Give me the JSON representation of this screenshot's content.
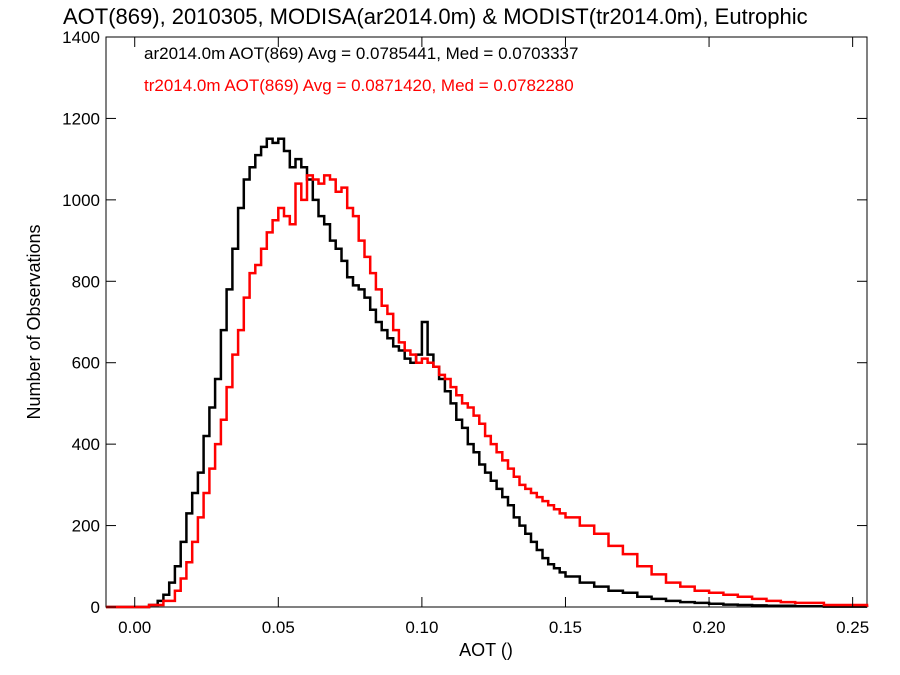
{
  "chart_data": {
    "type": "line",
    "title": "AOT(869), 2010305, MODISA(ar2014.0m) & MODIST(tr2014.0m), Eutrophic",
    "xlabel": "AOT ()",
    "ylabel": "Number of Observations",
    "xlim": [
      -0.01,
      0.255
    ],
    "ylim": [
      0,
      1400
    ],
    "xticks": [
      {
        "value": 0.0,
        "label": "0.00"
      },
      {
        "value": 0.05,
        "label": "0.05"
      },
      {
        "value": 0.1,
        "label": "0.10"
      },
      {
        "value": 0.15,
        "label": "0.15"
      },
      {
        "value": 0.2,
        "label": "0.20"
      },
      {
        "value": 0.25,
        "label": "0.25"
      }
    ],
    "yticks": [
      {
        "value": 0,
        "label": "0"
      },
      {
        "value": 200,
        "label": "200"
      },
      {
        "value": 400,
        "label": "400"
      },
      {
        "value": 600,
        "label": "600"
      },
      {
        "value": 800,
        "label": "800"
      },
      {
        "value": 1000,
        "label": "1000"
      },
      {
        "value": 1200,
        "label": "1200"
      },
      {
        "value": 1400,
        "label": "1400"
      }
    ],
    "grid": false,
    "legend_position": "top-left",
    "series": [
      {
        "name": "ar2014.0m",
        "color": "#000000",
        "legend_text": "ar2014.0m AOT(869) Avg = 0.0785441, Med = 0.0703337",
        "x": [
          -0.01,
          0.0,
          0.005,
          0.008,
          0.01,
          0.012,
          0.014,
          0.016,
          0.018,
          0.02,
          0.022,
          0.024,
          0.026,
          0.028,
          0.03,
          0.032,
          0.034,
          0.036,
          0.038,
          0.04,
          0.042,
          0.044,
          0.046,
          0.048,
          0.05,
          0.052,
          0.054,
          0.056,
          0.058,
          0.06,
          0.062,
          0.064,
          0.066,
          0.068,
          0.07,
          0.072,
          0.074,
          0.076,
          0.078,
          0.08,
          0.082,
          0.084,
          0.086,
          0.088,
          0.09,
          0.092,
          0.094,
          0.096,
          0.098,
          0.1,
          0.102,
          0.104,
          0.106,
          0.108,
          0.11,
          0.112,
          0.114,
          0.116,
          0.118,
          0.12,
          0.122,
          0.124,
          0.126,
          0.128,
          0.13,
          0.132,
          0.134,
          0.136,
          0.138,
          0.14,
          0.142,
          0.144,
          0.146,
          0.148,
          0.15,
          0.155,
          0.16,
          0.165,
          0.17,
          0.175,
          0.18,
          0.185,
          0.19,
          0.195,
          0.2,
          0.205,
          0.21,
          0.215,
          0.22,
          0.23,
          0.24,
          0.255
        ],
        "y": [
          0,
          0,
          5,
          15,
          30,
          60,
          100,
          160,
          230,
          280,
          330,
          420,
          490,
          560,
          680,
          780,
          880,
          980,
          1050,
          1080,
          1110,
          1130,
          1150,
          1140,
          1150,
          1120,
          1080,
          1100,
          1080,
          1050,
          1000,
          960,
          940,
          900,
          880,
          850,
          810,
          790,
          780,
          760,
          730,
          700,
          680,
          660,
          640,
          630,
          610,
          600,
          620,
          700,
          620,
          590,
          560,
          530,
          500,
          460,
          440,
          400,
          380,
          350,
          330,
          310,
          290,
          270,
          250,
          220,
          200,
          180,
          160,
          140,
          120,
          105,
          95,
          85,
          75,
          60,
          50,
          40,
          35,
          25,
          20,
          15,
          12,
          10,
          8,
          6,
          5,
          4,
          3,
          2,
          1,
          0
        ]
      },
      {
        "name": "tr2014.0m",
        "color": "#ff0000",
        "legend_text": "tr2014.0m AOT(869) Avg = 0.0871420, Med = 0.0782280",
        "x": [
          -0.01,
          0.0,
          0.005,
          0.01,
          0.014,
          0.016,
          0.018,
          0.02,
          0.022,
          0.024,
          0.026,
          0.028,
          0.03,
          0.032,
          0.034,
          0.036,
          0.038,
          0.04,
          0.042,
          0.044,
          0.046,
          0.048,
          0.05,
          0.052,
          0.054,
          0.056,
          0.058,
          0.06,
          0.062,
          0.064,
          0.066,
          0.068,
          0.07,
          0.072,
          0.074,
          0.076,
          0.078,
          0.08,
          0.082,
          0.084,
          0.086,
          0.088,
          0.09,
          0.092,
          0.094,
          0.096,
          0.098,
          0.1,
          0.102,
          0.104,
          0.106,
          0.108,
          0.11,
          0.112,
          0.114,
          0.116,
          0.118,
          0.12,
          0.122,
          0.124,
          0.126,
          0.128,
          0.13,
          0.132,
          0.134,
          0.136,
          0.138,
          0.14,
          0.142,
          0.144,
          0.146,
          0.148,
          0.15,
          0.155,
          0.16,
          0.165,
          0.17,
          0.175,
          0.18,
          0.185,
          0.19,
          0.195,
          0.2,
          0.205,
          0.21,
          0.215,
          0.22,
          0.225,
          0.23,
          0.24,
          0.255
        ],
        "y": [
          0,
          0,
          5,
          15,
          40,
          70,
          110,
          160,
          220,
          280,
          340,
          400,
          460,
          540,
          620,
          680,
          760,
          820,
          840,
          880,
          920,
          950,
          980,
          960,
          940,
          1040,
          1000,
          1060,
          1050,
          1040,
          1060,
          1050,
          1020,
          1030,
          980,
          960,
          900,
          860,
          820,
          780,
          740,
          720,
          680,
          650,
          630,
          620,
          600,
          610,
          600,
          590,
          570,
          560,
          540,
          520,
          500,
          490,
          470,
          450,
          420,
          400,
          380,
          360,
          340,
          320,
          300,
          290,
          280,
          270,
          260,
          250,
          240,
          230,
          220,
          200,
          180,
          150,
          130,
          100,
          80,
          60,
          50,
          40,
          35,
          30,
          25,
          20,
          15,
          12,
          10,
          5,
          0
        ]
      }
    ]
  }
}
